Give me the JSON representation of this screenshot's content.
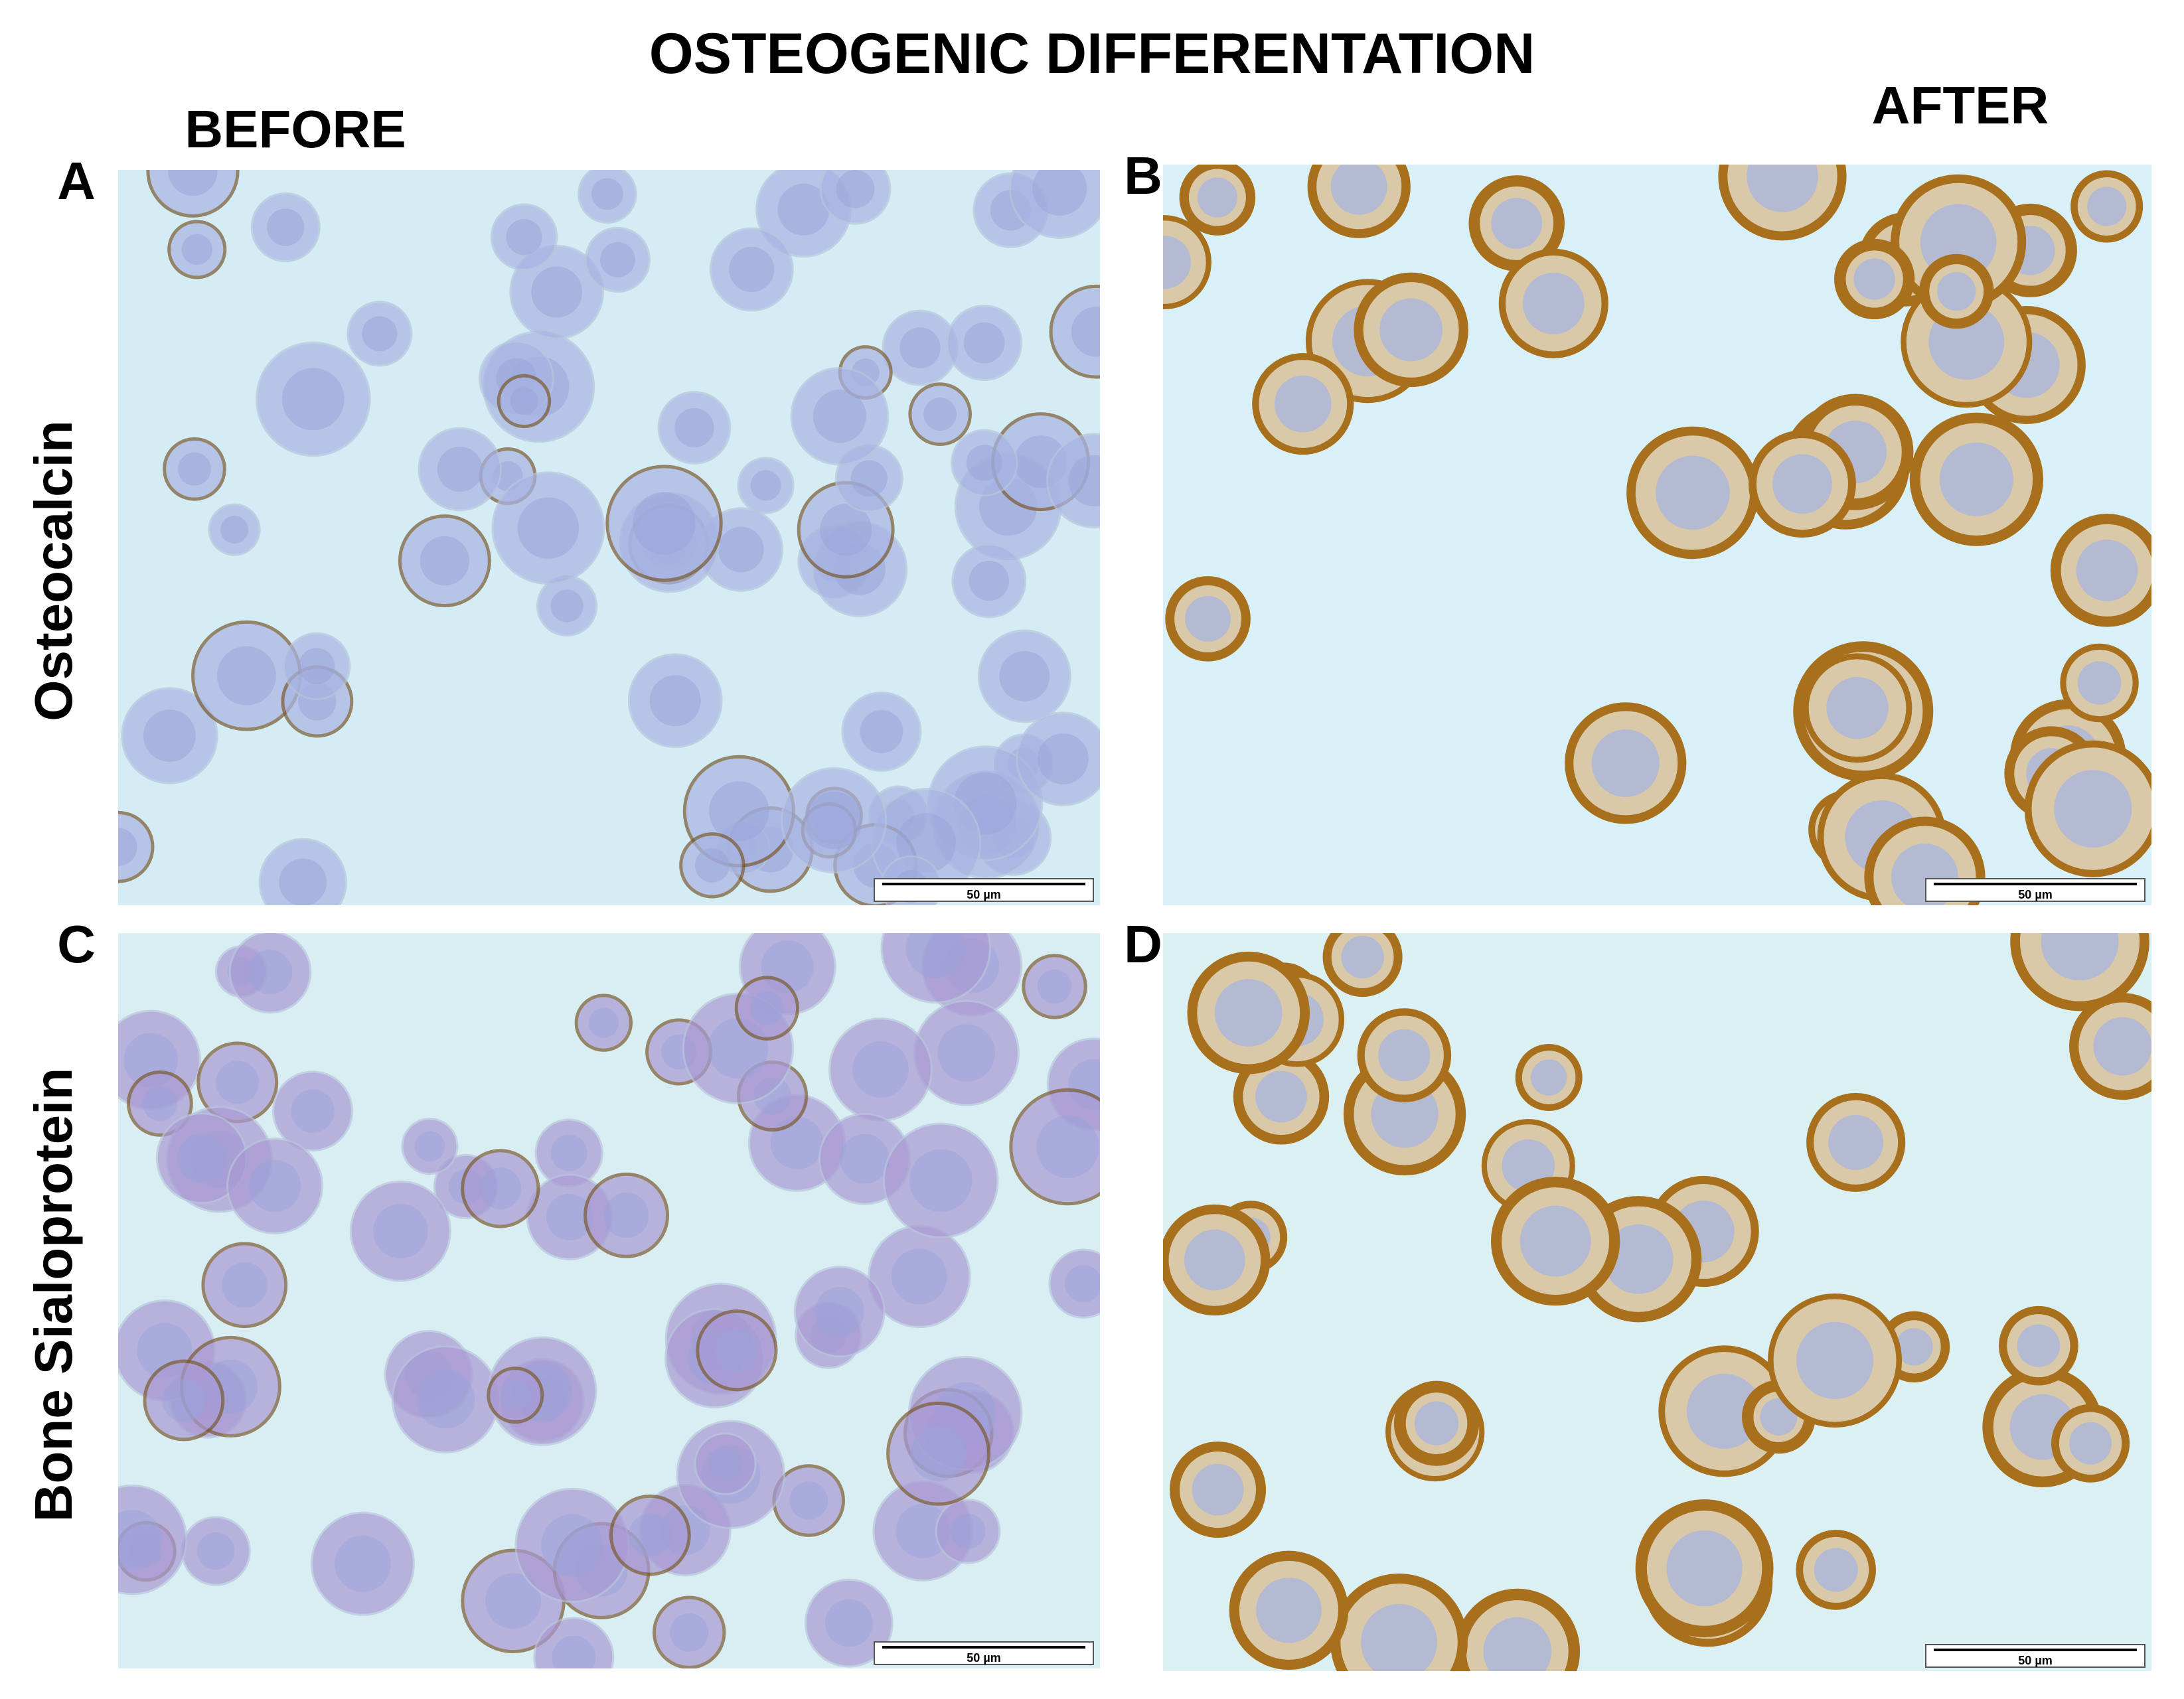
{
  "title": "OSTEOGENIC DIFFERENTATION",
  "columns": [
    "BEFORE",
    "AFTER"
  ],
  "rows": [
    "Osteocalcin",
    "Bone Sialoprotein"
  ],
  "panels": [
    {
      "label": "A",
      "scale_bar": "50 µm"
    },
    {
      "label": "B",
      "scale_bar": "50 µm"
    },
    {
      "label": "C",
      "scale_bar": "50 µm"
    },
    {
      "label": "D",
      "scale_bar": "50 µm"
    }
  ]
}
